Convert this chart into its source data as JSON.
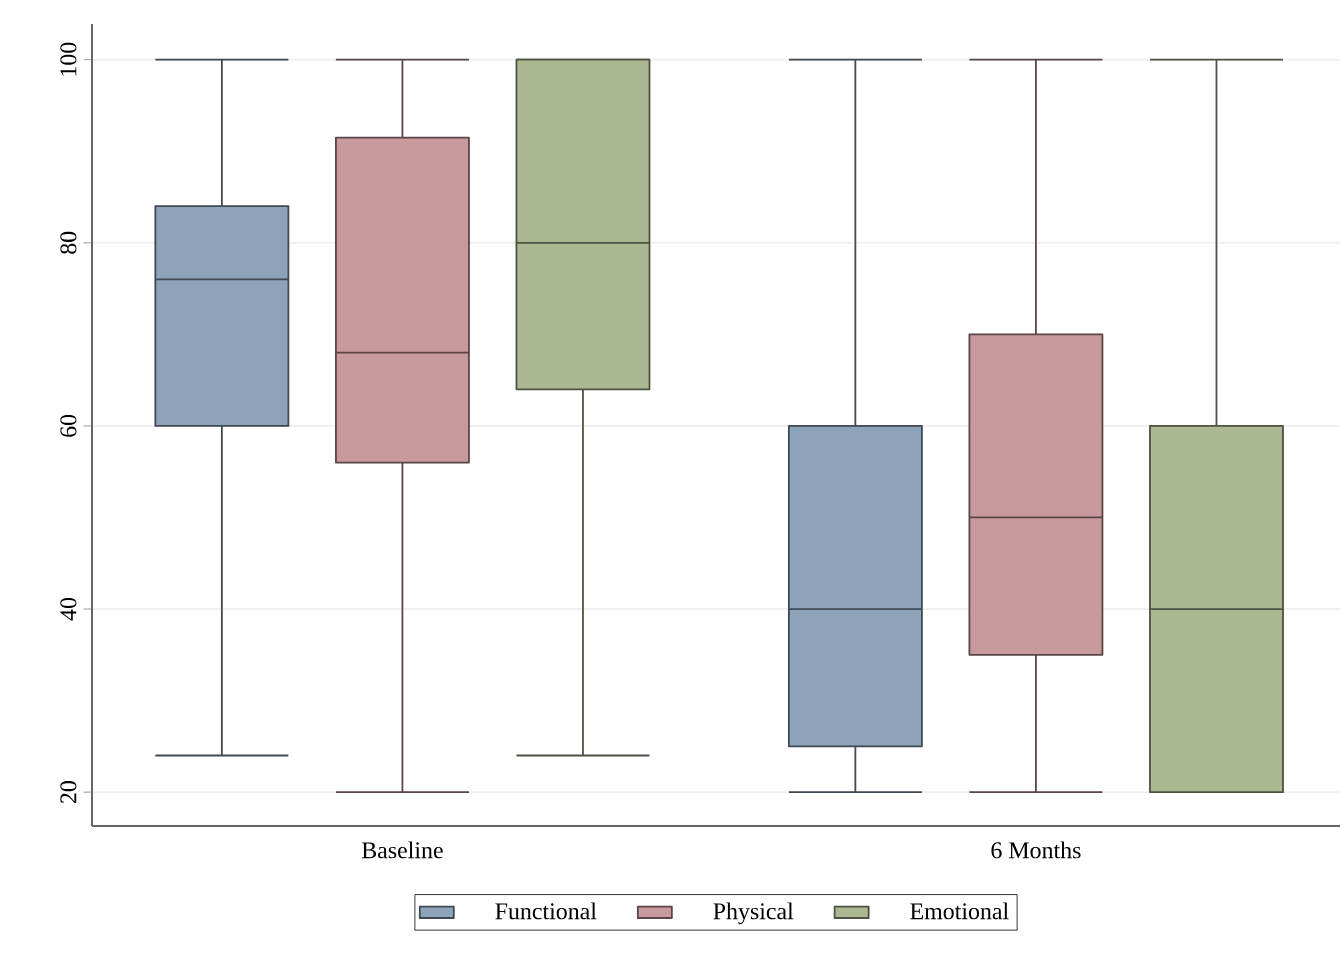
{
  "chart_data": {
    "type": "box",
    "categories": [
      "Baseline",
      "6 Months"
    ],
    "series": [
      {
        "name": "Functional",
        "color": "#8ca3b9",
        "boxes": [
          {
            "low": 24,
            "q1": 60,
            "median": 76,
            "q3": 84,
            "high": 100
          },
          {
            "low": 20,
            "q1": 25,
            "median": 40,
            "q3": 60,
            "high": 100
          }
        ]
      },
      {
        "name": "Physical",
        "color": "#c99a9d",
        "boxes": [
          {
            "low": 20,
            "q1": 56,
            "median": 68,
            "q3": 91.5,
            "high": 100
          },
          {
            "low": 20,
            "q1": 35,
            "median": 50,
            "q3": 70,
            "high": 100
          }
        ]
      },
      {
        "name": "Emotional",
        "color": "#abb892",
        "boxes": [
          {
            "low": 24,
            "q1": 64,
            "median": 80,
            "q3": 100,
            "high": 100
          },
          {
            "low": 20,
            "q1": 20,
            "median": 40,
            "q3": 60,
            "high": 100
          }
        ]
      }
    ],
    "ylim": [
      16.3,
      103.9
    ],
    "yticks": [
      20,
      40,
      60,
      80,
      100
    ],
    "grid": "y",
    "legend": "bottom"
  }
}
